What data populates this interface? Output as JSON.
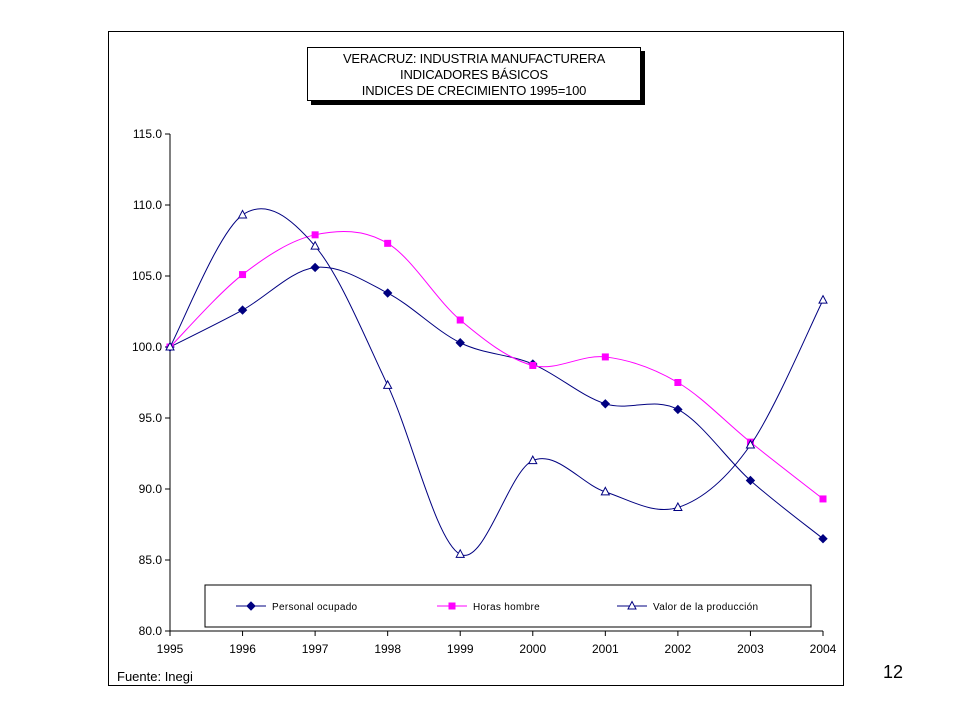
{
  "title_lines": [
    "VERACRUZ: INDUSTRIA MANUFACTURERA",
    "INDICADORES BÁSICOS",
    "INDICES DE CRECIMIENTO 1995=100"
  ],
  "source": "Fuente: Inegi",
  "page_number": "12",
  "chart_data": {
    "type": "line",
    "title": "VERACRUZ: INDUSTRIA MANUFACTURERA / INDICADORES BÁSICOS / INDICES DE CRECIMIENTO 1995=100",
    "x": [
      "1995",
      "1996",
      "1997",
      "1998",
      "1999",
      "2000",
      "2001",
      "2002",
      "2003",
      "2004"
    ],
    "ylim": [
      80,
      115
    ],
    "yticks": [
      "80.0",
      "85.0",
      "90.0",
      "95.0",
      "100.0",
      "105.0",
      "110.0",
      "115.0"
    ],
    "grid": false,
    "legend_position": "bottom-inside",
    "series": [
      {
        "name": "Personal ocupado",
        "color": "#000080",
        "marker": "diamond",
        "values": [
          100.0,
          102.6,
          105.6,
          103.8,
          100.3,
          98.8,
          96.0,
          95.6,
          90.6,
          86.5
        ]
      },
      {
        "name": "Horas hombre",
        "color": "#ff00ff",
        "marker": "square",
        "values": [
          100.0,
          105.1,
          107.9,
          107.3,
          101.9,
          98.7,
          99.3,
          97.5,
          93.3,
          89.3
        ]
      },
      {
        "name": "Valor de la producción",
        "color": "#000080",
        "marker": "triangle",
        "values": [
          100.0,
          109.3,
          107.1,
          97.3,
          85.4,
          92.0,
          89.8,
          88.7,
          93.1,
          103.3
        ]
      }
    ]
  }
}
